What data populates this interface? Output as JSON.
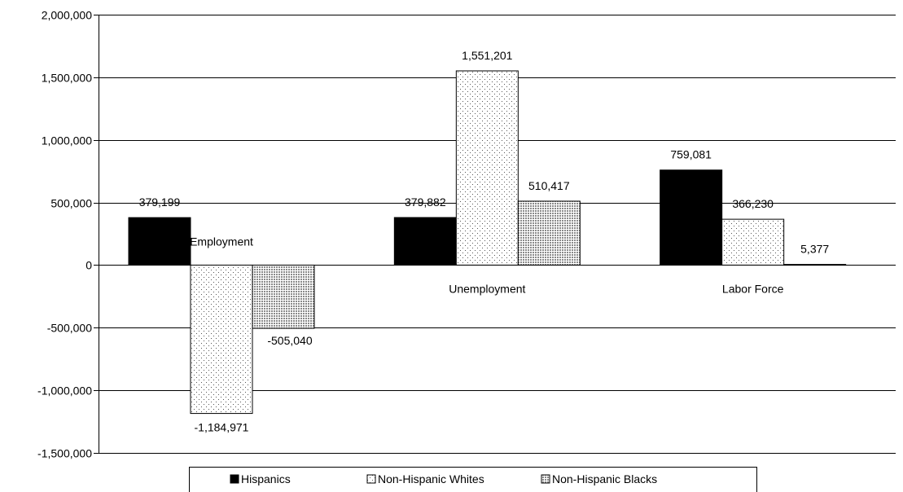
{
  "chart_data": {
    "type": "bar",
    "title": "",
    "xlabel": "",
    "ylabel": "",
    "ylim": [
      -1500000,
      2000000
    ],
    "ytick_step": 500000,
    "yticks": [
      "2,000,000",
      "1,500,000",
      "1,000,000",
      "500,000",
      "0",
      "-500,000",
      "-1,000,000",
      "-1,500,000"
    ],
    "grid": true,
    "legend_position": "bottom",
    "categories": [
      "Employment",
      "Unemployment",
      "Labor Force"
    ],
    "series": [
      {
        "name": "Hispanics",
        "pattern": "solid",
        "color": "#000000",
        "values": [
          379199,
          379882,
          759081
        ],
        "labels": [
          "379,199",
          "379,882",
          "759,081"
        ]
      },
      {
        "name": "Non-Hispanic Whites",
        "pattern": "dots",
        "color": "#ffffff",
        "values": [
          -1184971,
          1551201,
          366230
        ],
        "labels": [
          "-1,184,971",
          "1,551,201",
          "366,230"
        ]
      },
      {
        "name": "Non-Hispanic Blacks",
        "pattern": "dense-dots",
        "color": "#cccccc",
        "values": [
          -505040,
          510417,
          5377
        ],
        "labels": [
          "-505,040",
          "510,417",
          "5,377"
        ]
      }
    ]
  }
}
